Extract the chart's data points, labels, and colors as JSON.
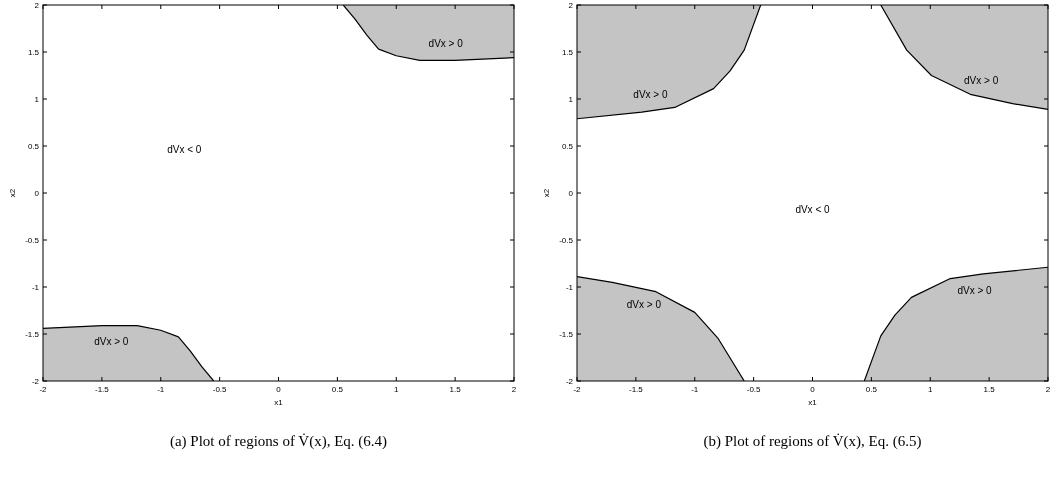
{
  "chart_data": [
    {
      "type": "line",
      "title": "(a) Plot of regions of V̇(x), Eq. (6.4)",
      "xlabel": "x1",
      "ylabel": "x2",
      "xlim": [
        -2,
        2
      ],
      "ylim": [
        -2,
        2
      ],
      "xticks": [
        -2,
        -1.5,
        -1,
        -0.5,
        0,
        0.5,
        1,
        1.5,
        2
      ],
      "yticks": [
        -2,
        -1.5,
        -1,
        -0.5,
        0,
        0.5,
        1,
        1.5,
        2
      ],
      "grid": false,
      "marker": "none",
      "line_style": "solid",
      "series": [
        {
          "name": "dVx > 0",
          "color": "#000000",
          "x": [
            0.55,
            0.65,
            0.75,
            0.85,
            1.0,
            1.2,
            1.5,
            2
          ],
          "values": [
            2,
            1.85,
            1.68,
            1.53,
            1.46,
            1.41,
            1.41,
            1.44
          ],
          "lower": [
            2,
            1.85,
            1.68,
            1.53,
            1.46,
            1.41,
            1.41,
            1.44
          ],
          "upper": [
            2,
            2,
            2,
            2,
            2,
            2,
            2,
            2
          ]
        },
        {
          "name": "dVx > 0",
          "color": "#000000",
          "x": [
            -2,
            -1.5,
            -1.2,
            -1,
            -0.85,
            -0.75,
            -0.65,
            -0.55
          ],
          "values": [
            -1.44,
            -1.41,
            -1.41,
            -1.46,
            -1.53,
            -1.68,
            -1.85,
            -2
          ],
          "lower": [
            -2,
            -2,
            -2,
            -2,
            -2,
            -2,
            -2,
            -2
          ],
          "upper": [
            -1.44,
            -1.41,
            -1.41,
            -1.46,
            -1.53,
            -1.68,
            -1.85,
            -2
          ]
        }
      ],
      "annotations": [
        "dVx < 0"
      ]
    },
    {
      "type": "line",
      "title": "(b) Plot of regions of V̇(x), Eq. (6.5)",
      "xlabel": "x1",
      "ylabel": "x2",
      "xlim": [
        -2,
        2
      ],
      "ylim": [
        -2,
        2
      ],
      "xticks": [
        -2,
        -1.5,
        -1,
        -0.5,
        0,
        0.5,
        1,
        1.5,
        2
      ],
      "yticks": [
        -2,
        -1.5,
        -1,
        -0.5,
        0,
        0.5,
        1,
        1.5,
        2
      ],
      "grid": false,
      "marker": "none",
      "line_style": "solid",
      "series": [
        {
          "name": "dVx > 0",
          "color": "#000000",
          "x": [
            -2,
            -1.45,
            -1.17,
            -0.84,
            -0.7,
            -0.58,
            -0.44
          ],
          "values": [
            0.79,
            0.86,
            0.91,
            1.11,
            1.3,
            1.52,
            2
          ],
          "lower": [
            0.79,
            0.86,
            0.91,
            1.11,
            1.3,
            1.52,
            2
          ],
          "upper": [
            2,
            2,
            2,
            2,
            2,
            2,
            2
          ]
        },
        {
          "name": "dVx > 0",
          "color": "#000000",
          "x": [
            0.58,
            0.8,
            1.01,
            1.34,
            1.7,
            2
          ],
          "values": [
            2,
            1.52,
            1.25,
            1.05,
            0.95,
            0.89
          ],
          "lower": [
            2,
            1.52,
            1.25,
            1.05,
            0.95,
            0.89
          ],
          "upper": [
            2,
            2,
            2,
            2,
            2,
            2
          ]
        },
        {
          "name": "dVx > 0",
          "color": "#000000",
          "x": [
            -2,
            -1.7,
            -1.33,
            -1.0,
            -0.8,
            -0.58
          ],
          "values": [
            -0.89,
            -0.95,
            -1.05,
            -1.27,
            -1.55,
            -2
          ],
          "lower": [
            -2,
            -2,
            -2,
            -2,
            -2,
            -2
          ],
          "upper": [
            -0.89,
            -0.95,
            -1.05,
            -1.27,
            -1.55,
            -2
          ]
        },
        {
          "name": "dVx > 0",
          "color": "#000000",
          "x": [
            0.44,
            0.58,
            0.7,
            0.84,
            1.17,
            1.45,
            2
          ],
          "values": [
            -2,
            -1.52,
            -1.3,
            -1.11,
            -0.91,
            -0.86,
            -0.79
          ],
          "lower": [
            -2,
            -2,
            -2,
            -2,
            -2,
            -2,
            -2
          ],
          "upper": [
            -2,
            -1.52,
            -1.3,
            -1.11,
            -0.91,
            -0.86,
            -0.79
          ]
        }
      ],
      "annotations": [
        "dVx < 0"
      ]
    }
  ]
}
